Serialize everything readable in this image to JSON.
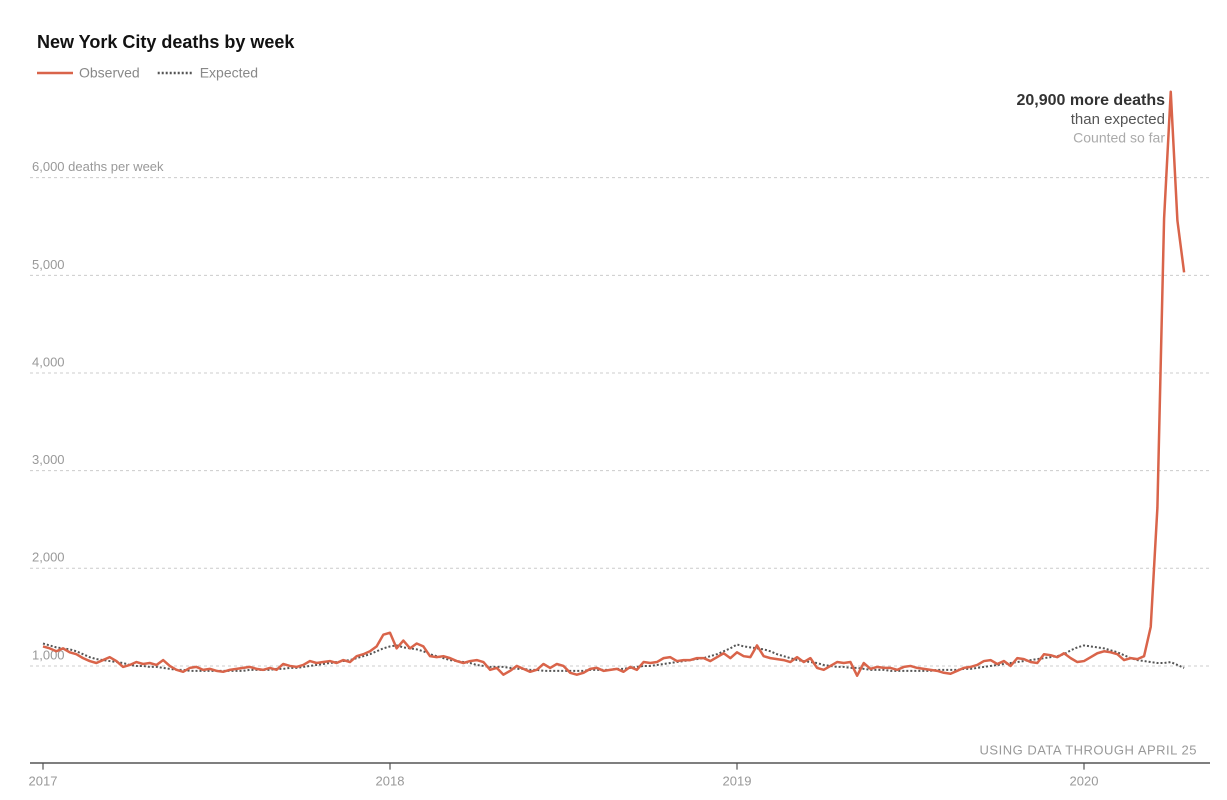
{
  "chart_data": {
    "type": "line",
    "title": "New York City deaths by week",
    "categories": [
      "2017",
      null,
      null,
      null,
      null,
      null,
      null,
      null,
      null,
      null,
      null,
      null,
      null,
      null,
      null,
      null,
      null,
      null,
      null,
      null,
      null,
      null,
      null,
      null,
      null,
      null,
      null,
      null,
      null,
      null,
      null,
      null,
      null,
      null,
      null,
      null,
      null,
      null,
      null,
      null,
      null,
      null,
      null,
      null,
      null,
      null,
      null,
      null,
      null,
      null,
      null,
      null,
      "2018",
      null,
      null,
      null,
      null,
      null,
      null,
      null,
      null,
      null,
      null,
      null,
      null,
      null,
      null,
      null,
      null,
      null,
      null,
      null,
      null,
      null,
      null,
      null,
      null,
      null,
      null,
      null,
      null,
      null,
      null,
      null,
      null,
      null,
      null,
      null,
      null,
      null,
      null,
      null,
      null,
      null,
      null,
      null,
      null,
      null,
      null,
      null,
      null,
      null,
      null,
      null,
      "2019",
      null,
      null,
      null,
      null,
      null,
      null,
      null,
      null,
      null,
      null,
      null,
      null,
      null,
      null,
      null,
      null,
      null,
      null,
      null,
      null,
      null,
      null,
      null,
      null,
      null,
      null,
      null,
      null,
      null,
      null,
      null,
      null,
      null,
      null,
      null,
      null,
      null,
      null,
      null,
      null,
      null,
      null,
      null,
      null,
      null,
      null,
      null,
      null,
      null,
      null,
      null,
      "2020",
      null,
      null,
      null,
      null,
      null,
      null,
      null,
      null,
      null,
      null,
      null,
      null,
      null,
      null,
      null
    ],
    "series": [
      {
        "name": "Observed",
        "color": "#d9644a",
        "style": "solid",
        "values": [
          1200,
          1180,
          1150,
          1180,
          1140,
          1120,
          1080,
          1050,
          1030,
          1060,
          1090,
          1050,
          990,
          1010,
          1040,
          1020,
          1030,
          1010,
          1060,
          1000,
          960,
          940,
          980,
          990,
          960,
          970,
          950,
          940,
          960,
          970,
          980,
          990,
          970,
          960,
          980,
          960,
          1020,
          1000,
          990,
          1010,
          1050,
          1030,
          1040,
          1050,
          1030,
          1060,
          1040,
          1100,
          1120,
          1150,
          1200,
          1320,
          1340,
          1180,
          1260,
          1180,
          1230,
          1200,
          1100,
          1090,
          1100,
          1080,
          1050,
          1030,
          1050,
          1060,
          1040,
          960,
          980,
          910,
          950,
          1000,
          970,
          940,
          960,
          1020,
          980,
          1020,
          1000,
          930,
          910,
          930,
          970,
          980,
          950,
          960,
          970,
          940,
          990,
          960,
          1040,
          1030,
          1040,
          1080,
          1090,
          1050,
          1060,
          1060,
          1080,
          1080,
          1050,
          1090,
          1130,
          1080,
          1140,
          1100,
          1090,
          1210,
          1100,
          1080,
          1070,
          1060,
          1040,
          1090,
          1040,
          1080,
          980,
          960,
          1000,
          1040,
          1030,
          1040,
          900,
          1030,
          970,
          990,
          980,
          980,
          960,
          990,
          1000,
          980,
          970,
          960,
          950,
          930,
          920,
          950,
          980,
          990,
          1010,
          1050,
          1060,
          1020,
          1050,
          1000,
          1080,
          1070,
          1040,
          1030,
          1120,
          1110,
          1090,
          1130,
          1080,
          1040,
          1050,
          1090,
          1130,
          1150,
          1140,
          1120,
          1060,
          1080,
          1070,
          1100,
          1400,
          2620,
          5580,
          6880,
          5560,
          5030
        ]
      },
      {
        "name": "Expected",
        "color": "#555555",
        "style": "dotted",
        "values": [
          1230,
          1210,
          1190,
          1180,
          1170,
          1150,
          1120,
          1090,
          1070,
          1060,
          1050,
          1040,
          1030,
          1010,
          1000,
          1000,
          990,
          990,
          980,
          970,
          960,
          960,
          950,
          950,
          950,
          950,
          950,
          950,
          950,
          950,
          950,
          960,
          960,
          960,
          960,
          970,
          970,
          980,
          980,
          990,
          1000,
          1010,
          1020,
          1030,
          1040,
          1050,
          1060,
          1080,
          1100,
          1120,
          1150,
          1180,
          1200,
          1210,
          1190,
          1180,
          1170,
          1150,
          1120,
          1100,
          1080,
          1060,
          1050,
          1040,
          1030,
          1010,
          1000,
          990,
          990,
          990,
          980,
          970,
          970,
          960,
          960,
          950,
          950,
          950,
          950,
          950,
          950,
          950,
          960,
          960,
          960,
          960,
          970,
          970,
          980,
          990,
          1000,
          1000,
          1010,
          1020,
          1030,
          1040,
          1050,
          1060,
          1070,
          1080,
          1100,
          1120,
          1150,
          1180,
          1220,
          1200,
          1190,
          1180,
          1170,
          1150,
          1120,
          1100,
          1080,
          1060,
          1050,
          1040,
          1030,
          1010,
          1000,
          990,
          990,
          980,
          980,
          970,
          960,
          960,
          960,
          950,
          950,
          950,
          950,
          950,
          950,
          950,
          960,
          960,
          960,
          960,
          970,
          970,
          980,
          990,
          1000,
          1010,
          1020,
          1030,
          1040,
          1050,
          1060,
          1070,
          1080,
          1090,
          1100,
          1120,
          1160,
          1190,
          1210,
          1200,
          1190,
          1180,
          1160,
          1140,
          1110,
          1080,
          1060,
          1050,
          1040,
          1030,
          1030,
          1040,
          1010,
          980
        ]
      }
    ],
    "ylim": [
      0,
      7000
    ],
    "yticks": [
      {
        "value": 1000,
        "label": "1,000"
      },
      {
        "value": 2000,
        "label": "2,000"
      },
      {
        "value": 3000,
        "label": "3,000"
      },
      {
        "value": 4000,
        "label": "4,000"
      },
      {
        "value": 5000,
        "label": "5,000"
      },
      {
        "value": 6000,
        "label": "6,000 deaths per week"
      }
    ],
    "grid": true,
    "annotations": [
      "20,900 more deaths",
      "than expected",
      "Counted so far"
    ],
    "note": "USING DATA THROUGH APRIL 25"
  }
}
